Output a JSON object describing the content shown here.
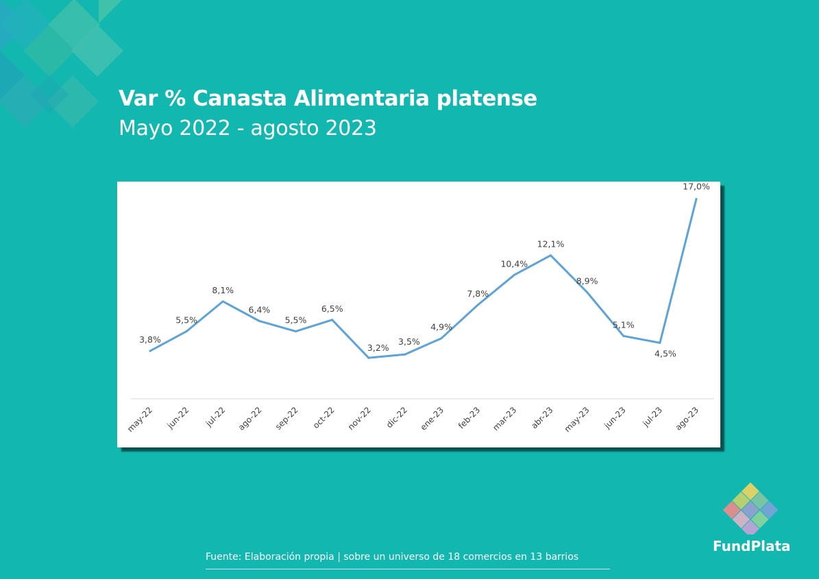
{
  "header": {
    "title": "Var % Canasta Alimentaria platense",
    "subtitle": "Mayo 2022 - agosto 2023"
  },
  "footer": {
    "source": "Fuente: Elaboración propia | sobre un universo de 18 comercios en 13 barrios"
  },
  "brand": {
    "name": "FundPlata",
    "background_color": "#12b8b0",
    "line_color": "#5ba3d9",
    "logo_colors": [
      "#f4d35e",
      "#86c5a4",
      "#7da3d9",
      "#c9d36a",
      "#9b9fd1",
      "#8fd19e",
      "#f28a8a",
      "#e4b3c7",
      "#c8a2d8"
    ]
  },
  "chart_data": {
    "type": "line",
    "categories": [
      "may-22",
      "jun-22",
      "jul-22",
      "ago-22",
      "sep-22",
      "oct-22",
      "nov-22",
      "dic-22",
      "ene-23",
      "feb-23",
      "mar-23",
      "abr-23",
      "may-23",
      "jun-23",
      "jul-23",
      "ago-23"
    ],
    "values": [
      3.8,
      5.5,
      8.1,
      6.4,
      5.5,
      6.5,
      3.2,
      3.5,
      4.9,
      7.8,
      10.4,
      12.1,
      8.9,
      5.1,
      4.5,
      17.0
    ],
    "data_labels": [
      "3,8%",
      "5,5%",
      "8,1%",
      "6,4%",
      "5,5%",
      "6,5%",
      "3,2%",
      "3,5%",
      "4,9%",
      "7,8%",
      "10,4%",
      "12,1%",
      "8,9%",
      "5,1%",
      "4,5%",
      "17,0%"
    ],
    "title": "Var % Canasta Alimentaria platense",
    "subtitle": "Mayo 2022 - agosto 2023",
    "xlabel": "",
    "ylabel": "",
    "ylim": [
      0,
      17
    ],
    "grid": false,
    "legend": "none"
  }
}
